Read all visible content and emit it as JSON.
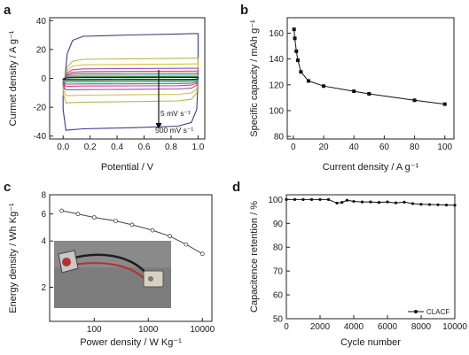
{
  "panels": [
    {
      "id": "a",
      "letter": "a"
    },
    {
      "id": "b",
      "letter": "b"
    },
    {
      "id": "c",
      "letter": "c"
    },
    {
      "id": "d",
      "letter": "d"
    }
  ],
  "chart_data": [
    {
      "panel": "a",
      "type": "line",
      "xlabel": "Potential / V",
      "ylabel": "Curmet density / A g⁻¹",
      "xlim": [
        -0.1,
        1.05
      ],
      "ylim": [
        -42,
        42
      ],
      "xticks": [
        "0.0",
        "0.2",
        "0.4",
        "0.6",
        "0.8",
        "1.0"
      ],
      "xtick_values": [
        0,
        0.2,
        0.4,
        0.6,
        0.8,
        1.0
      ],
      "yticks": [
        "-40",
        "-20",
        "0",
        "20",
        "40"
      ],
      "ytick_values": [
        -40,
        -20,
        0,
        20,
        40
      ],
      "annotations": [
        "5 mV s⁻¹",
        "500 mV s⁻¹"
      ],
      "series": [
        {
          "color": "#3b3b8f",
          "top": 31,
          "bottom": -36
        },
        {
          "color": "#b8b84a",
          "top": 14,
          "bottom": -17
        },
        {
          "color": "#d6c23a",
          "top": 10,
          "bottom": -12
        },
        {
          "color": "#9a4fb0",
          "top": 7,
          "bottom": -8
        },
        {
          "color": "#d23ca0",
          "top": 5,
          "bottom": -5.5
        },
        {
          "color": "#9b5a2a",
          "top": 3.5,
          "bottom": -4
        },
        {
          "color": "#3aa7d6",
          "top": 2.2,
          "bottom": -2.6
        },
        {
          "color": "#2e8b3a",
          "top": 1.2,
          "bottom": -1.5
        },
        {
          "color": "#1a1a1a",
          "top": 0.6,
          "bottom": -0.8
        }
      ]
    },
    {
      "panel": "b",
      "type": "line",
      "xlabel": "Current density / A g⁻¹",
      "ylabel": "Specific capacity / mAh g⁻¹",
      "xlim": [
        -4,
        106
      ],
      "ylim": [
        78,
        172
      ],
      "xticks": [
        "0",
        "20",
        "40",
        "60",
        "80",
        "100"
      ],
      "xtick_values": [
        0,
        20,
        40,
        60,
        80,
        100
      ],
      "yticks": [
        "80",
        "100",
        "120",
        "140",
        "160"
      ],
      "ytick_values": [
        80,
        100,
        120,
        140,
        160
      ],
      "x": [
        0.5,
        1,
        2,
        3,
        5,
        10,
        20,
        40,
        50,
        80,
        100
      ],
      "y": [
        163,
        156,
        146,
        139,
        130,
        123,
        119,
        115,
        113,
        108,
        105
      ]
    },
    {
      "panel": "c",
      "type": "line",
      "log_x": true,
      "log_y": true,
      "xlabel": "Power density / W Kg⁻¹",
      "ylabel": "Energy density / Wh Kg⁻¹",
      "xlim": [
        15,
        15000
      ],
      "ylim": [
        1.2,
        8
      ],
      "xticks": [
        "100",
        "1000",
        "10000"
      ],
      "xtick_values": [
        100,
        1000,
        10000
      ],
      "yticks": [
        "2",
        "4",
        "6",
        "8"
      ],
      "ytick_values": [
        2,
        4,
        6,
        8
      ],
      "x": [
        25,
        50,
        100,
        250,
        500,
        1200,
        2500,
        5000,
        10000
      ],
      "y": [
        6.3,
        6.0,
        5.7,
        5.4,
        5.1,
        4.7,
        4.3,
        3.8,
        3.3
      ]
    },
    {
      "panel": "d",
      "type": "line",
      "xlabel": "Cycle number",
      "ylabel": "Capacitence retention / %",
      "xlim": [
        0,
        10000
      ],
      "ylim": [
        50,
        102
      ],
      "xticks": [
        "0",
        "2000",
        "4000",
        "6000",
        "8000",
        "10000"
      ],
      "xtick_values": [
        0,
        2000,
        4000,
        6000,
        8000,
        10000
      ],
      "yticks": [
        "50",
        "60",
        "70",
        "80",
        "90",
        "100"
      ],
      "ytick_values": [
        50,
        60,
        70,
        80,
        90,
        100
      ],
      "series": [
        {
          "name": "CLACF",
          "x": [
            0,
            500,
            1000,
            1500,
            2000,
            2500,
            3000,
            3300,
            3600,
            4000,
            4500,
            5000,
            5500,
            6000,
            6500,
            7000,
            7500,
            8000,
            8500,
            9000,
            9500,
            10000
          ],
          "y": [
            100,
            100,
            100,
            100,
            100,
            100,
            98.5,
            98.8,
            99.7,
            99.2,
            99,
            99,
            98.8,
            99,
            98.6,
            98.9,
            98.3,
            98,
            97.9,
            97.8,
            97.7,
            97.6
          ]
        }
      ]
    }
  ]
}
